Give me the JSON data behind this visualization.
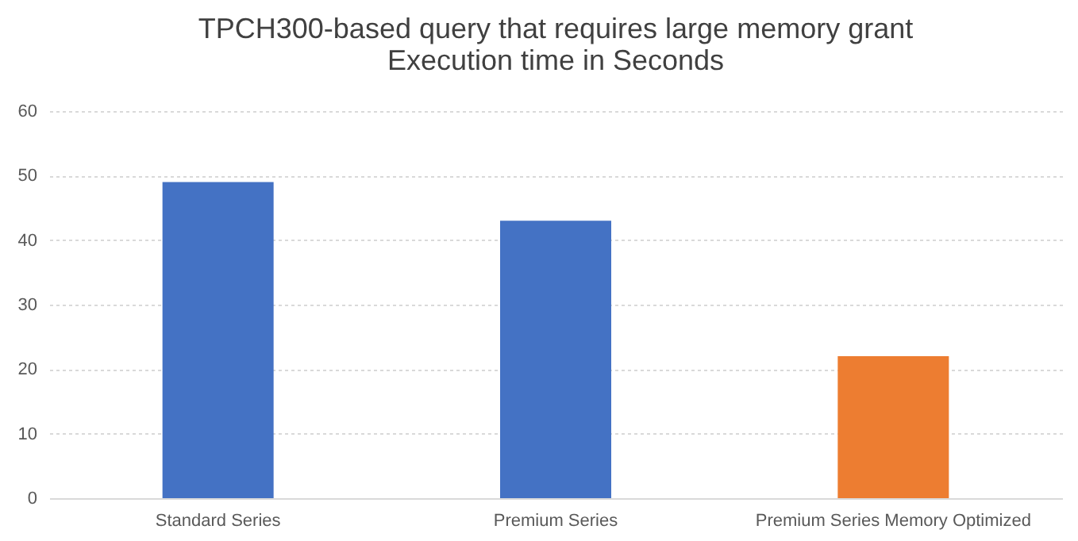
{
  "chart_data": {
    "type": "bar",
    "title": [
      "TPCH300-based query that requires large memory grant",
      "Execution time in Seconds"
    ],
    "categories": [
      "Standard Series",
      "Premium Series",
      "Premium Series Memory Optimized"
    ],
    "values": [
      49,
      43,
      22
    ],
    "colors": [
      "#4472c4",
      "#4472c4",
      "#ed7d31"
    ],
    "ylim": [
      0,
      60
    ],
    "yticks": [
      0,
      10,
      20,
      30,
      40,
      50,
      60
    ],
    "grid": "y"
  }
}
